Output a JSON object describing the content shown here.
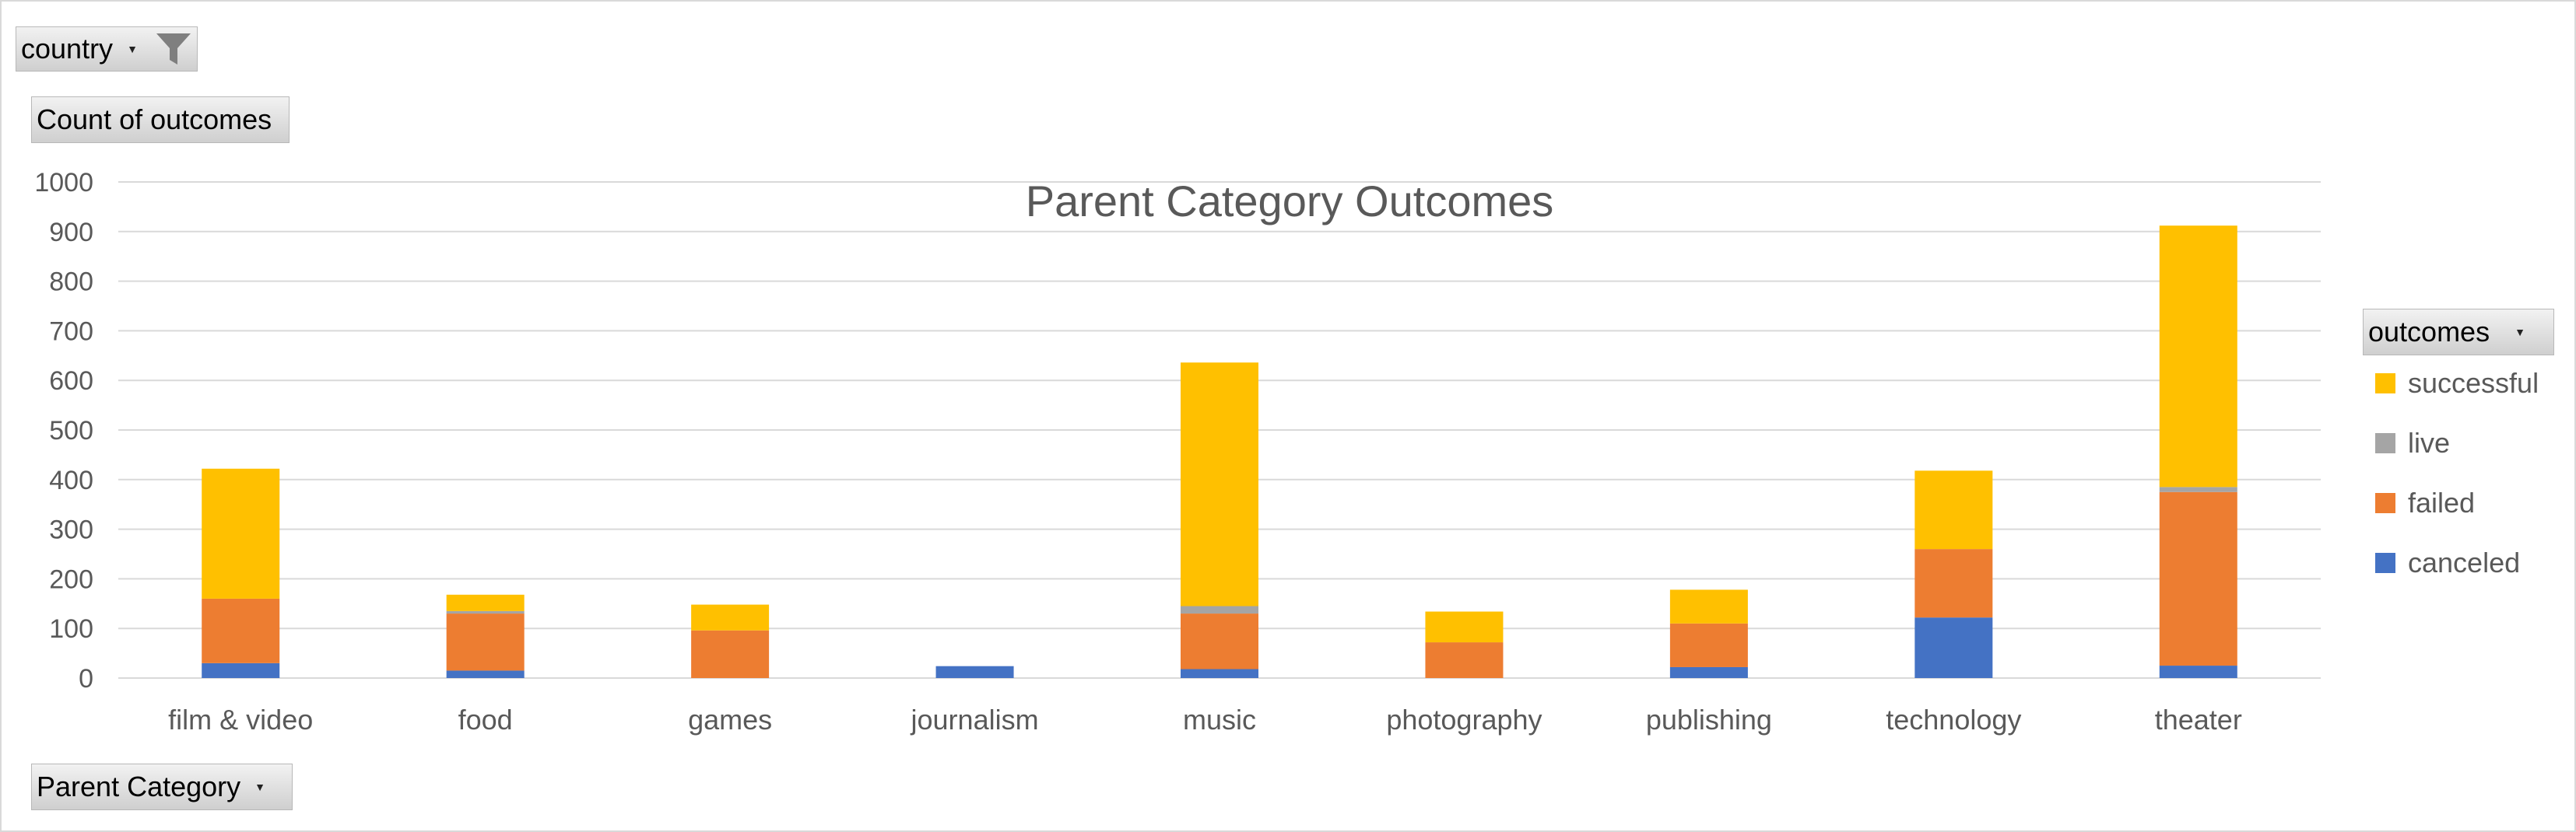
{
  "filters": {
    "country_label": "country",
    "value_field_label": "Count of outcomes",
    "axis_field_label": "Parent Category",
    "legend_field_label": "outcomes"
  },
  "icons": {
    "filter": "funnel-filter-icon",
    "dropdown": "dropdown-arrow-icon"
  },
  "chart_data": {
    "type": "bar",
    "stacked": true,
    "title": "Parent Category Outcomes",
    "xlabel": "",
    "ylabel": "",
    "ylim": [
      0,
      1000
    ],
    "yticks": [
      0,
      100,
      200,
      300,
      400,
      500,
      600,
      700,
      800,
      900,
      1000
    ],
    "grid": true,
    "legend_position": "right",
    "categories": [
      "film & video",
      "food",
      "games",
      "journalism",
      "music",
      "photography",
      "publishing",
      "technology",
      "theater"
    ],
    "series": [
      {
        "name": "canceled",
        "color": "#4472C4",
        "values": [
          30,
          15,
          0,
          24,
          18,
          0,
          22,
          122,
          25
        ]
      },
      {
        "name": "failed",
        "color": "#ED7D31",
        "values": [
          130,
          115,
          96,
          0,
          112,
          72,
          88,
          138,
          350
        ]
      },
      {
        "name": "live",
        "color": "#A5A5A5",
        "values": [
          0,
          5,
          0,
          0,
          15,
          0,
          0,
          0,
          10
        ]
      },
      {
        "name": "successful",
        "color": "#FFC000",
        "values": [
          262,
          33,
          52,
          0,
          491,
          62,
          68,
          158,
          527
        ]
      }
    ],
    "legend_order": [
      "successful",
      "live",
      "failed",
      "canceled"
    ]
  }
}
